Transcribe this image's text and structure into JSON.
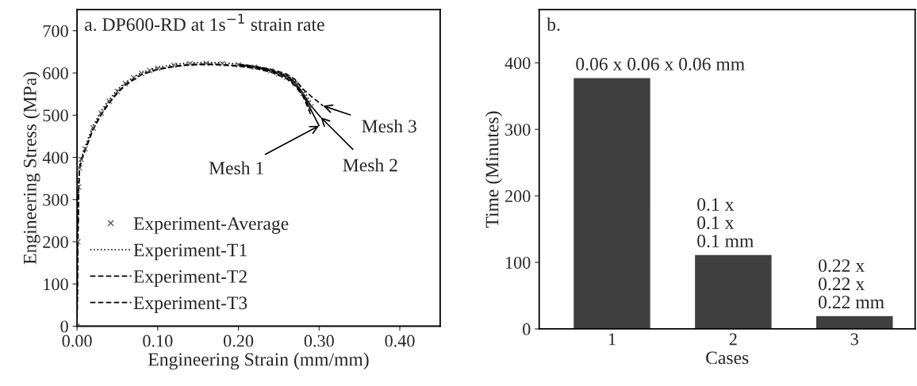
{
  "chart_data": [
    {
      "type": "line",
      "title": "a. DP600-RD at 1s$^{−1}$ strain rate",
      "xlabel": "Engineering Strain (mm/mm)",
      "ylabel": "Engineering Stress (MPa)",
      "xlim": [
        0,
        0.45
      ],
      "xticks": [
        {
          "value": 0,
          "label": "0.00"
        },
        {
          "value": 0.1,
          "label": "0.10"
        },
        {
          "value": 0.2,
          "label": "0.20"
        },
        {
          "value": 0.3,
          "label": "0.30"
        },
        {
          "value": 0.4,
          "label": "0.40"
        }
      ],
      "ylim": [
        0,
        750
      ],
      "yticks": [
        0,
        100,
        200,
        300,
        400,
        500,
        600,
        700
      ],
      "grid": false,
      "legend": "bottom left",
      "series": [
        {
          "name": "Experiment-Average",
          "type": "scatter",
          "marker": "cross",
          "color": "#555555",
          "x": [
            0,
            0.001,
            0.002,
            0.003,
            0.005,
            0.01,
            0.02,
            0.03,
            0.04,
            0.05,
            0.06,
            0.07,
            0.08,
            0.09,
            0.1,
            0.12,
            0.14,
            0.16,
            0.18,
            0.2,
            0.22,
            0.24,
            0.25,
            0.26,
            0.27,
            0.28,
            0.29
          ],
          "values": [
            0,
            200,
            330,
            375,
            395,
            420,
            470,
            505,
            533,
            556,
            575,
            589,
            599,
            606,
            611,
            618,
            622,
            623,
            622,
            619,
            614,
            605,
            598,
            590,
            575,
            552,
            520
          ]
        },
        {
          "name": "Experiment-T1",
          "type": "line",
          "line_style": "dotted",
          "color": "#000000",
          "x": [
            0,
            0.001,
            0.002,
            0.003,
            0.005,
            0.01,
            0.02,
            0.03,
            0.04,
            0.05,
            0.06,
            0.08,
            0.1,
            0.12,
            0.14,
            0.16,
            0.18,
            0.2,
            0.22,
            0.24,
            0.26,
            0.27,
            0.28,
            0.29
          ],
          "values": [
            0,
            210,
            340,
            380,
            398,
            425,
            475,
            510,
            537,
            560,
            578,
            601,
            613,
            620,
            624,
            625,
            624,
            621,
            616,
            608,
            595,
            582,
            560,
            530
          ]
        },
        {
          "name": "Experiment-T2",
          "type": "line",
          "line_style": "dashed",
          "color": "#000000",
          "x": [
            0,
            0.001,
            0.002,
            0.003,
            0.005,
            0.01,
            0.02,
            0.03,
            0.04,
            0.05,
            0.06,
            0.08,
            0.1,
            0.12,
            0.14,
            0.16,
            0.18,
            0.2,
            0.22,
            0.24,
            0.26,
            0.27,
            0.28,
            0.29
          ],
          "values": [
            0,
            195,
            325,
            372,
            392,
            418,
            468,
            503,
            531,
            554,
            573,
            597,
            609,
            616,
            620,
            621,
            620,
            617,
            612,
            603,
            588,
            572,
            548,
            510
          ]
        },
        {
          "name": "Experiment-T3",
          "type": "line",
          "line_style": "dashed",
          "color": "#000000",
          "x": [
            0,
            0.001,
            0.002,
            0.003,
            0.005,
            0.01,
            0.02,
            0.03,
            0.04,
            0.05,
            0.06,
            0.08,
            0.1,
            0.12,
            0.14,
            0.16,
            0.18,
            0.2,
            0.22,
            0.24,
            0.26,
            0.27,
            0.28,
            0.29
          ],
          "values": [
            0,
            190,
            320,
            370,
            390,
            416,
            466,
            501,
            529,
            552,
            571,
            596,
            608,
            615,
            619,
            620,
            619,
            616,
            611,
            602,
            586,
            570,
            545,
            500
          ]
        },
        {
          "type": "line",
          "line_style": "solid",
          "color": "#000000",
          "x": [
            0.2,
            0.22,
            0.24,
            0.26,
            0.27,
            0.28,
            0.29,
            0.3
          ],
          "values": [
            619,
            614,
            605,
            590,
            574,
            548,
            512,
            475
          ]
        },
        {
          "type": "line",
          "line_style": "solid",
          "color": "#000000",
          "x": [
            0.2,
            0.22,
            0.24,
            0.26,
            0.27,
            0.28,
            0.29,
            0.302
          ],
          "values": [
            620,
            615,
            607,
            593,
            578,
            552,
            522,
            495
          ]
        },
        {
          "type": "line",
          "line_style": "dashed",
          "color": "#000000",
          "x": [
            0.2,
            0.22,
            0.24,
            0.26,
            0.27,
            0.28,
            0.29,
            0.305
          ],
          "values": [
            621,
            616,
            609,
            597,
            585,
            562,
            545,
            522
          ]
        }
      ],
      "annotations": [
        {
          "text": "Mesh 1",
          "x": 0.3,
          "y": 475
        },
        {
          "text": "Mesh 2",
          "x": 0.302,
          "y": 495
        },
        {
          "text": "Mesh 3",
          "x": 0.305,
          "y": 522
        }
      ]
    },
    {
      "type": "bar",
      "title": "b.",
      "xlabel": "Cases",
      "ylabel": "Time (Minutes)",
      "categories": [
        "1",
        "2",
        "3"
      ],
      "values": [
        378,
        112,
        20
      ],
      "color": "#404040",
      "annotations": [
        {
          "text": "0.06 x 0.06 x 0.06 mm",
          "x": "1",
          "y": 378
        },
        {
          "text": "0.1 x\n0.1 x\n0.1 mm",
          "x": "2",
          "y": 112
        },
        {
          "text": "0.22 x\n0.22 x\n0.22 mm",
          "x": "3",
          "y": 20
        }
      ],
      "ylim": [
        0,
        480
      ],
      "yticks": [
        0,
        100,
        200,
        300,
        400
      ],
      "grid": false
    }
  ]
}
